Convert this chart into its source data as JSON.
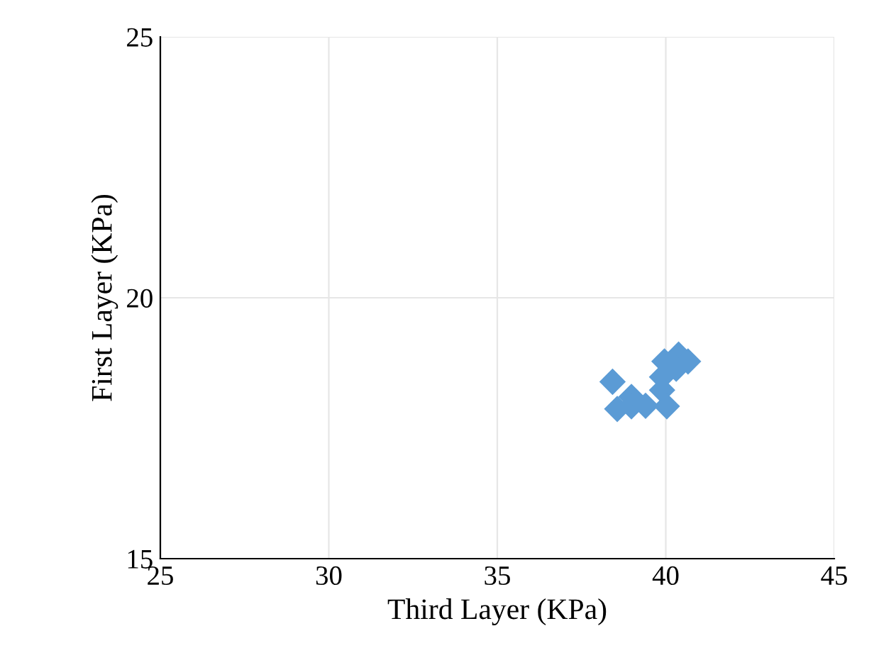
{
  "chart_data": {
    "type": "scatter",
    "xlabel": "Third Layer (KPa)",
    "ylabel": "First Layer (KPa)",
    "series": [
      {
        "color": "#5b9bd5",
        "x": [
          38.42,
          38.56,
          38.98,
          38.98,
          39.4,
          39.89,
          39.89,
          39.96,
          40.38,
          40.66,
          40.31,
          40.03
        ],
        "values": [
          18.39,
          17.87,
          18.1,
          17.92,
          17.93,
          18.23,
          18.48,
          18.78,
          18.91,
          18.78,
          18.64,
          17.92
        ]
      }
    ],
    "marker": "diamond",
    "xlim": [
      25,
      45
    ],
    "ylim": [
      15,
      25
    ],
    "xticks": [
      25,
      30,
      35,
      40,
      45
    ],
    "yticks": [
      15,
      20,
      25
    ],
    "grid": true
  }
}
